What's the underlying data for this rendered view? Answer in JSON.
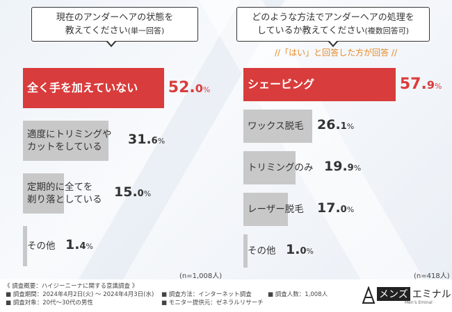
{
  "left_chart": {
    "question_line1": "現在のアンダーヘアの状態を",
    "question_line2": "教えてください",
    "question_suffix": "(単一回答)",
    "n_label": "(n=1,008人)"
  },
  "right_chart": {
    "question_line1": "どのような方法でアンダーヘアの処理を",
    "question_line2": "しているか教えてください",
    "question_suffix": "(複数回答可)",
    "note": "//「はい」と回答した方が回答 //",
    "n_label": "(n=418人)"
  },
  "chart_data": [
    {
      "type": "bar",
      "orientation": "horizontal",
      "title": "現在のアンダーヘアの状態を教えてください(単一回答)",
      "categories": [
        "全く手を加えていない",
        "適度にトリミングやカットをしている",
        "定期的に全てを剃り落としている",
        "その他"
      ],
      "category_lines": [
        [
          "全く手を加えていない"
        ],
        [
          "適度にトリミングや",
          "カットをしている"
        ],
        [
          "定期的に全てを",
          "剃り落としている"
        ],
        [
          "その他"
        ]
      ],
      "values": [
        52.0,
        31.6,
        15.0,
        1.4
      ],
      "value_labels": [
        [
          "52.",
          "0",
          "%"
        ],
        [
          "31.",
          "6",
          "%"
        ],
        [
          "15.",
          "0",
          "%"
        ],
        [
          "1.",
          "4",
          "%"
        ]
      ],
      "unit": "%",
      "highlight_index": 0,
      "colors": {
        "highlight": "#d93c3c",
        "normal": "#c8c8c8"
      }
    },
    {
      "type": "bar",
      "orientation": "horizontal",
      "title": "どのような方法でアンダーヘアの処理をしているか教えてください(複数回答可)",
      "categories": [
        "シェービング",
        "ワックス脱毛",
        "トリミングのみ",
        "レーザー脱毛",
        "その他"
      ],
      "category_lines": [
        [
          "シェービング"
        ],
        [
          "ワックス脱毛"
        ],
        [
          "トリミングのみ"
        ],
        [
          "レーザー脱毛"
        ],
        [
          "その他"
        ]
      ],
      "values": [
        57.9,
        26.1,
        19.9,
        17.0,
        1.0
      ],
      "value_labels": [
        [
          "57.",
          "9",
          "%"
        ],
        [
          "26.",
          "1",
          "%"
        ],
        [
          "19.",
          "9",
          "%"
        ],
        [
          "17.",
          "0",
          "%"
        ],
        [
          "1.",
          "0",
          "%"
        ]
      ],
      "unit": "%",
      "highlight_index": 0,
      "colors": {
        "highlight": "#d93c3c",
        "normal": "#c8c8c8"
      }
    }
  ],
  "footer": {
    "summary": "《 調査概要：ハイジーニーナに関する意識調査 》",
    "period": "■ 調査期間：2024年4月2日(火) ～ 2024年4月3日(水)",
    "target": "■ 調査対象：20代〜30代の男性",
    "method": "■ 調査方法：インターネット調査",
    "provider": "■ モニター提供元：ゼネラルリサーチ",
    "count": "■ 調査人数：1,008人"
  },
  "logo": {
    "black_text": "メンズ",
    "main_text": "エミナル",
    "sub_text": "Men's Eminal"
  }
}
